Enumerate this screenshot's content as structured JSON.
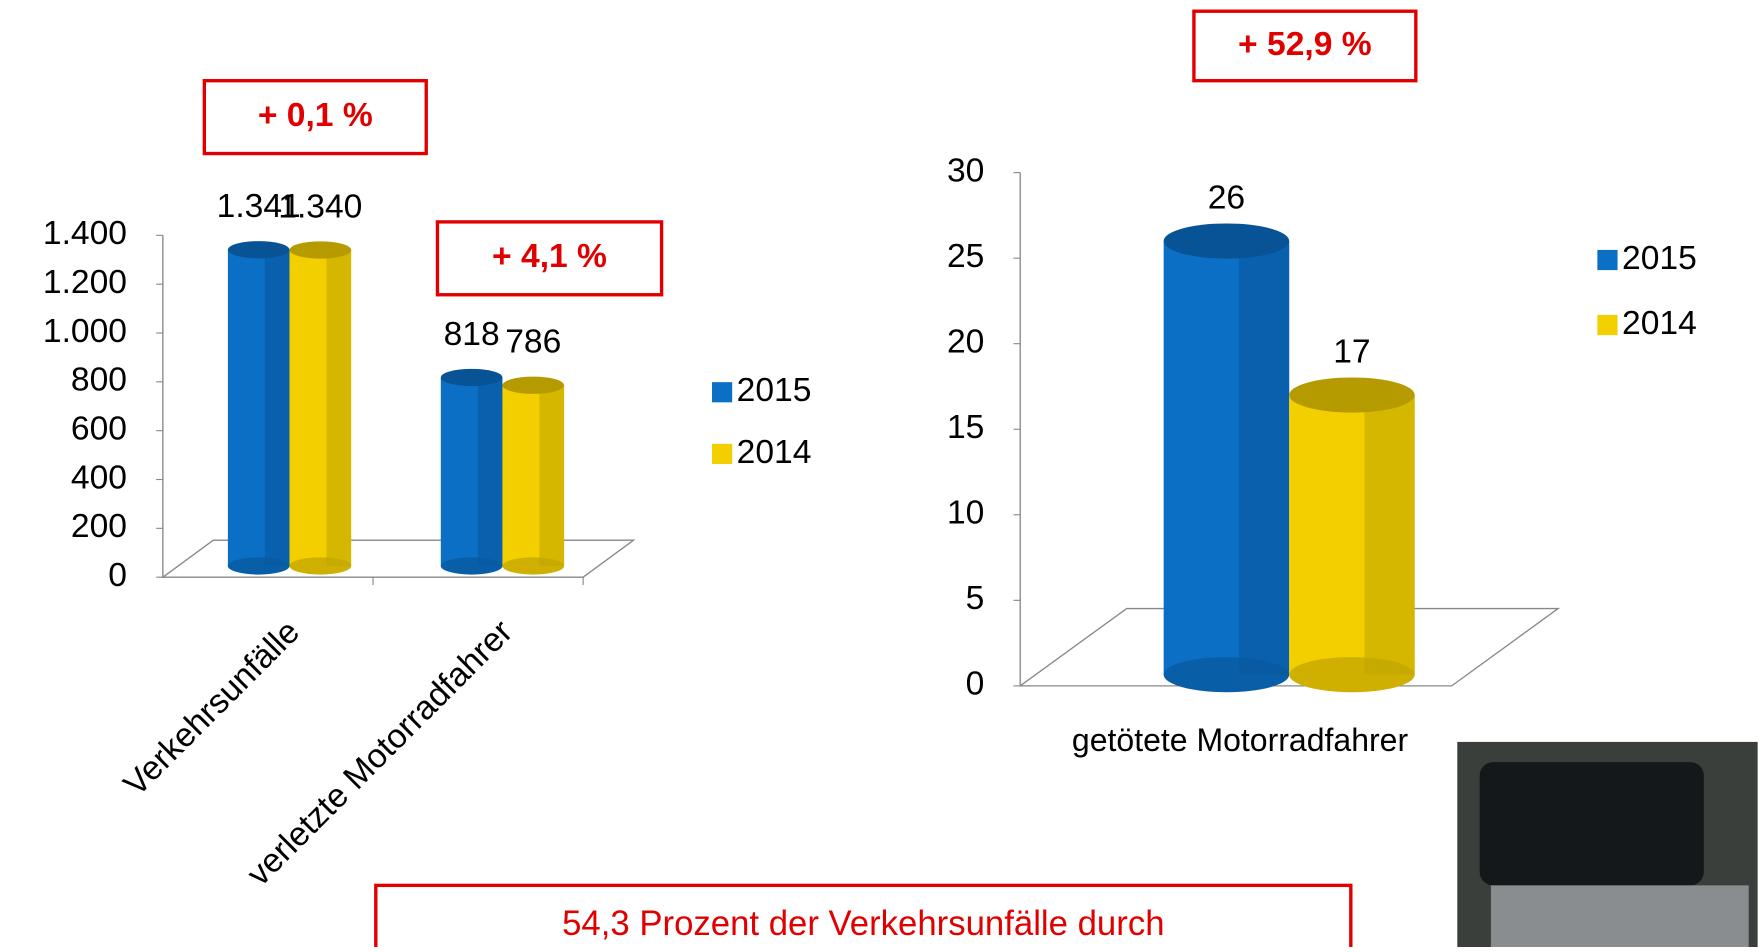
{
  "chart_data": [
    {
      "type": "bar",
      "categories": [
        "Verkehrsunfälle",
        "verletzte Motorradfahrer"
      ],
      "series": [
        {
          "name": "2015",
          "color": "#0b6fc6",
          "values": [
            1341,
            818
          ],
          "value_labels": [
            "1.341",
            "818"
          ]
        },
        {
          "name": "2014",
          "color": "#f3cf00",
          "values": [
            1340,
            786
          ],
          "value_labels": [
            "1.340",
            "786"
          ]
        }
      ],
      "ylim": [
        0,
        1400
      ],
      "yticks": [
        0,
        200,
        400,
        600,
        800,
        {
          "value": 1000,
          "label": "1.000"
        },
        {
          "value": 1200,
          "label": "1.200"
        },
        {
          "value": 1400,
          "label": "1.400"
        }
      ],
      "annotations": [
        "+ 0,1 %",
        "+ 4,1 %"
      ],
      "legend": "right"
    },
    {
      "type": "bar",
      "categories": [
        "getötete Motorradfahrer"
      ],
      "series": [
        {
          "name": "2015",
          "color": "#0b6fc6",
          "values": [
            26
          ]
        },
        {
          "name": "2014",
          "color": "#f3cf00",
          "values": [
            17
          ]
        }
      ],
      "ylim": [
        0,
        30
      ],
      "yticks": [
        0,
        5,
        10,
        15,
        20,
        25,
        30
      ],
      "annotations": [
        "+ 52,9 %"
      ],
      "legend": "right"
    }
  ],
  "footer": "54,3 Prozent der Verkehrsunfälle durch"
}
